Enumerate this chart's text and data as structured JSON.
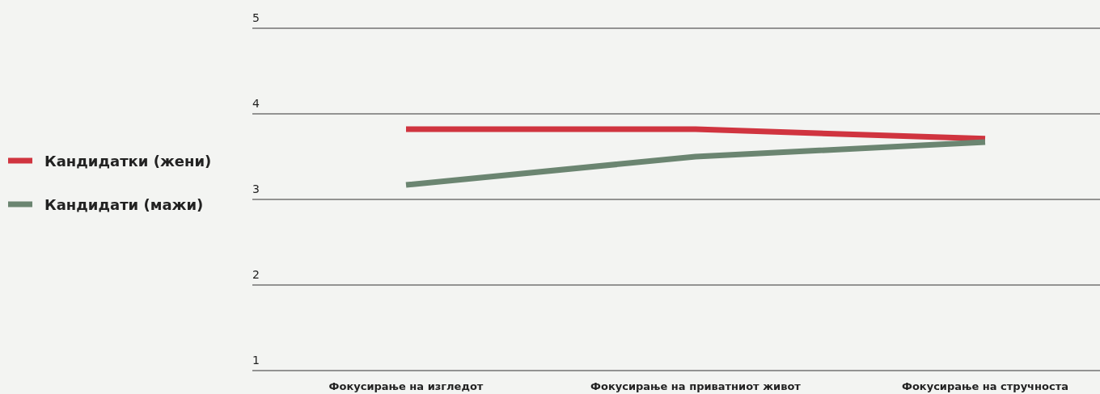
{
  "chart_data": {
    "type": "line",
    "categories": [
      "Фокусирање на изгледот",
      "Фокусирање на приватниот живот",
      "Фокусирање на стручноста"
    ],
    "series": [
      {
        "name": "Кандидатки (жени)",
        "color": "#d0343f",
        "values": [
          3.82,
          3.82,
          3.71
        ]
      },
      {
        "name": "Кандидати (мажи)",
        "color": "#6b8571",
        "values": [
          3.17,
          3.5,
          3.67
        ]
      }
    ],
    "ylim": [
      1,
      5
    ],
    "yticks": [
      1,
      2,
      3,
      4,
      5
    ],
    "grid": "y",
    "legend": "left",
    "marker": "none",
    "line_style": "solid"
  }
}
